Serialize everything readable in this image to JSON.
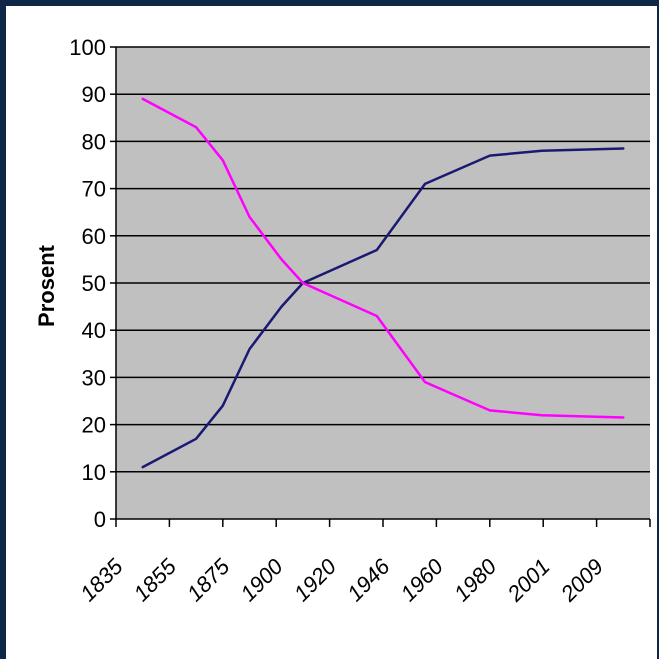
{
  "chart_data": {
    "type": "line",
    "ylabel": "Prosent",
    "xlabel": "",
    "title": "",
    "categories": [
      "1835",
      "1855",
      "1875",
      "1900",
      "1920",
      "1946",
      "1960",
      "1980",
      "2001",
      "2009"
    ],
    "ylim": [
      0,
      100
    ],
    "yticks": [
      0,
      10,
      20,
      30,
      40,
      50,
      60,
      70,
      80,
      90,
      100
    ],
    "grid": true,
    "legend": "none",
    "series": [
      {
        "color": "#1a1a72",
        "points": [
          {
            "x": 1835,
            "y": 11
          },
          {
            "x": 1855,
            "y": 17
          },
          {
            "x": 1865,
            "y": 24
          },
          {
            "x": 1875,
            "y": 36
          },
          {
            "x": 1890,
            "y": 45
          },
          {
            "x": 1900,
            "y": 50
          },
          {
            "x": 1930,
            "y": 57
          },
          {
            "x": 1950,
            "y": 71
          },
          {
            "x": 1970,
            "y": 77
          },
          {
            "x": 1990,
            "y": 78
          },
          {
            "x": 2009,
            "y": 78.5
          }
        ]
      },
      {
        "color": "#ff00ff",
        "points": [
          {
            "x": 1835,
            "y": 89
          },
          {
            "x": 1855,
            "y": 83
          },
          {
            "x": 1865,
            "y": 76
          },
          {
            "x": 1875,
            "y": 64
          },
          {
            "x": 1890,
            "y": 55
          },
          {
            "x": 1900,
            "y": 50
          },
          {
            "x": 1930,
            "y": 43
          },
          {
            "x": 1950,
            "y": 29
          },
          {
            "x": 1970,
            "y": 23
          },
          {
            "x": 1990,
            "y": 22
          },
          {
            "x": 2009,
            "y": 21.5
          }
        ]
      }
    ]
  }
}
